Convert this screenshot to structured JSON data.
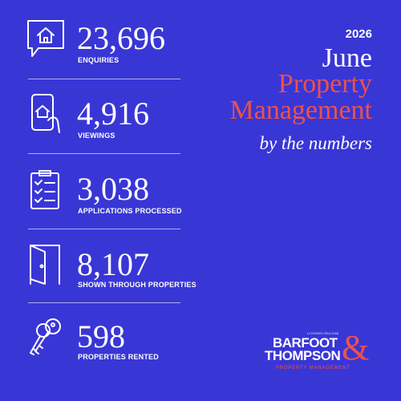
{
  "header": {
    "year": "2026",
    "month": "June",
    "line1": "Property",
    "line2": "Management",
    "tagline": "by the numbers"
  },
  "stats": [
    {
      "value": "23,696",
      "label": "ENQUIRIES"
    },
    {
      "value": "4,916",
      "label": "VIEWINGS"
    },
    {
      "value": "3,038",
      "label": "APPLICATIONS PROCESSED"
    },
    {
      "value": "8,107",
      "label": "SHOWN THROUGH PROPERTIES"
    },
    {
      "value": "598",
      "label": "PROPERTIES RENTED"
    }
  ],
  "logo": {
    "small": "LICENSED REA 2008",
    "line1": "BARFOOT",
    "line2": "THOMPSON",
    "ampersand": "&",
    "sub": "PROPERTY MANAGEMENT"
  }
}
